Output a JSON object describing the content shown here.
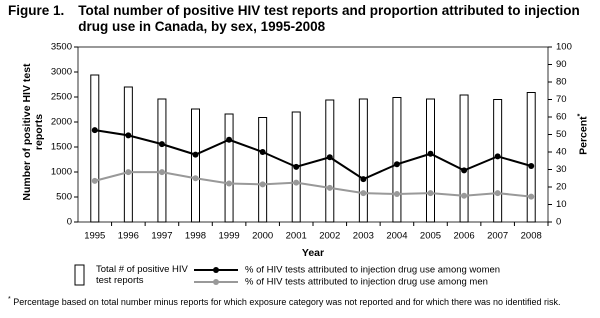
{
  "chart_data": {
    "type": "bar",
    "figure_label": "Figure 1.",
    "title": "Total number of positive HIV test reports and proportion attributed to injection drug use in Canada, by sex, 1995-2008",
    "ylabel": "Number of positive HIV test reports",
    "y2label": "Percent",
    "note_marker": "*",
    "xlabel": "Year",
    "footnote": "Percentage based on total number minus reports for which exposure category was not reported and for which there was no identified risk.",
    "categories": [
      "1995",
      "1996",
      "1997",
      "1998",
      "1999",
      "2000",
      "2001",
      "2002",
      "2003",
      "2004",
      "2005",
      "2006",
      "2007",
      "2008"
    ],
    "series": [
      {
        "name": "Total # of positive HIV test reports",
        "type": "bar",
        "color": "#ffffff",
        "values": [
          2940,
          2700,
          2460,
          2260,
          2160,
          2090,
          2200,
          2440,
          2460,
          2490,
          2460,
          2540,
          2450,
          2590
        ]
      },
      {
        "name": "% of HIV tests attributed to injection drug use among women",
        "type": "line",
        "axis": "y2",
        "color": "#000000",
        "values": [
          52.5,
          49.5,
          44.5,
          38.5,
          47,
          40,
          31.5,
          37,
          24.5,
          33,
          39,
          29.5,
          37.5,
          32
        ]
      },
      {
        "name": "% of HIV tests attributed to injection drug use among men",
        "type": "line",
        "axis": "y2",
        "color": "#999999",
        "values": [
          23.5,
          28.5,
          28.5,
          25,
          22,
          21.5,
          22.5,
          19.5,
          16.5,
          16,
          16.5,
          15,
          16.5,
          14.5
        ]
      }
    ],
    "ylim": [
      0,
      3500
    ],
    "yticks": [
      0,
      500,
      1000,
      1500,
      2000,
      2500,
      3000,
      3500
    ],
    "y2lim": [
      0,
      100
    ],
    "y2ticks": [
      0,
      10,
      20,
      30,
      40,
      50,
      60,
      70,
      80,
      90,
      100
    ]
  }
}
